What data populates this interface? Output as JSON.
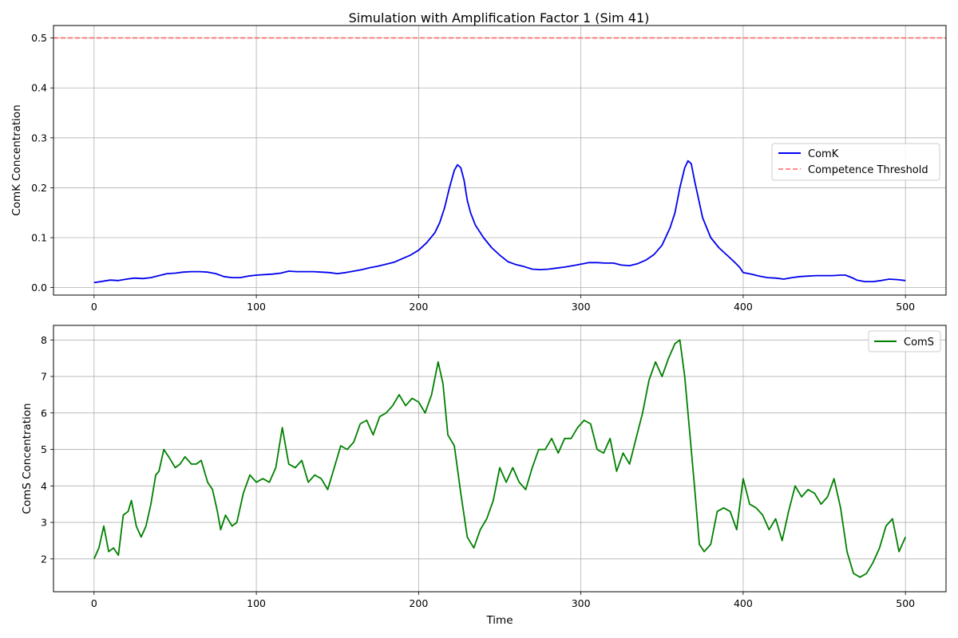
{
  "chart_data": [
    {
      "type": "line",
      "title": "Simulation with Amplification Factor 1 (Sim 41)",
      "xlabel": "",
      "ylabel": "ComK Concentration",
      "xlim": [
        -25,
        525
      ],
      "ylim": [
        -0.015,
        0.525
      ],
      "xticks": [
        0,
        100,
        200,
        300,
        400,
        500
      ],
      "yticks": [
        0.0,
        0.1,
        0.2,
        0.3,
        0.4,
        0.5
      ],
      "ytick_labels": [
        "0.0",
        "0.1",
        "0.2",
        "0.3",
        "0.4",
        "0.5"
      ],
      "grid": true,
      "legend_position": "center-right",
      "series": [
        {
          "name": "ComK",
          "color": "#0000ee",
          "style": "solid",
          "x": [
            0,
            10,
            15,
            20,
            25,
            30,
            35,
            40,
            45,
            50,
            55,
            60,
            65,
            70,
            75,
            80,
            85,
            90,
            95,
            100,
            110,
            115,
            120,
            125,
            130,
            135,
            140,
            145,
            150,
            155,
            160,
            165,
            170,
            175,
            180,
            185,
            190,
            195,
            200,
            205,
            210,
            213,
            216,
            219,
            222,
            224,
            226,
            228,
            230,
            232,
            235,
            240,
            245,
            250,
            255,
            260,
            265,
            270,
            275,
            280,
            285,
            290,
            295,
            300,
            305,
            310,
            315,
            320,
            325,
            330,
            335,
            340,
            345,
            350,
            355,
            358,
            361,
            364,
            366,
            368,
            370,
            372,
            375,
            380,
            385,
            390,
            395,
            398,
            400,
            405,
            410,
            415,
            420,
            425,
            430,
            435,
            440,
            445,
            450,
            455,
            460,
            463,
            467,
            470,
            475,
            480,
            485,
            490,
            495,
            500
          ],
          "y": [
            0.01,
            0.015,
            0.014,
            0.017,
            0.019,
            0.018,
            0.02,
            0.024,
            0.028,
            0.029,
            0.031,
            0.032,
            0.032,
            0.031,
            0.028,
            0.022,
            0.02,
            0.02,
            0.023,
            0.025,
            0.027,
            0.029,
            0.033,
            0.032,
            0.032,
            0.032,
            0.031,
            0.03,
            0.028,
            0.03,
            0.033,
            0.036,
            0.04,
            0.043,
            0.047,
            0.051,
            0.058,
            0.065,
            0.075,
            0.09,
            0.11,
            0.13,
            0.16,
            0.2,
            0.235,
            0.246,
            0.24,
            0.215,
            0.175,
            0.15,
            0.125,
            0.1,
            0.08,
            0.065,
            0.052,
            0.046,
            0.042,
            0.037,
            0.036,
            0.037,
            0.039,
            0.041,
            0.044,
            0.047,
            0.05,
            0.05,
            0.049,
            0.049,
            0.045,
            0.044,
            0.048,
            0.055,
            0.066,
            0.085,
            0.12,
            0.15,
            0.2,
            0.24,
            0.254,
            0.248,
            0.215,
            0.185,
            0.14,
            0.1,
            0.08,
            0.065,
            0.05,
            0.04,
            0.03,
            0.027,
            0.023,
            0.02,
            0.019,
            0.017,
            0.02,
            0.022,
            0.023,
            0.024,
            0.024,
            0.024,
            0.025,
            0.025,
            0.02,
            0.015,
            0.012,
            0.012,
            0.014,
            0.017,
            0.016,
            0.014
          ]
        },
        {
          "name": "Competence Threshold",
          "color": "#ff6666",
          "style": "dashed",
          "x": [
            -25,
            525
          ],
          "y": [
            0.5,
            0.5
          ]
        }
      ]
    },
    {
      "type": "line",
      "title": "",
      "xlabel": "Time",
      "ylabel": "ComS Concentration",
      "xlim": [
        -25,
        525
      ],
      "ylim": [
        1.1,
        8.4
      ],
      "xticks": [
        0,
        100,
        200,
        300,
        400,
        500
      ],
      "yticks": [
        2,
        3,
        4,
        5,
        6,
        7,
        8
      ],
      "ytick_labels": [
        "2",
        "3",
        "4",
        "5",
        "6",
        "7",
        "8"
      ],
      "grid": true,
      "legend_position": "top-right",
      "series": [
        {
          "name": "ComS",
          "color": "#008000",
          "style": "solid",
          "x": [
            0,
            3,
            6,
            9,
            12,
            15,
            18,
            21,
            23,
            26,
            29,
            32,
            35,
            38,
            40,
            43,
            46,
            50,
            53,
            56,
            60,
            63,
            66,
            70,
            73,
            76,
            78,
            81,
            85,
            88,
            92,
            96,
            100,
            104,
            108,
            112,
            116,
            120,
            124,
            128,
            132,
            136,
            140,
            144,
            148,
            152,
            156,
            160,
            164,
            168,
            172,
            176,
            180,
            184,
            188,
            192,
            196,
            200,
            204,
            208,
            212,
            215,
            218,
            222,
            226,
            230,
            234,
            238,
            242,
            246,
            250,
            254,
            258,
            262,
            266,
            270,
            274,
            278,
            282,
            286,
            290,
            294,
            298,
            302,
            306,
            310,
            314,
            318,
            322,
            326,
            330,
            334,
            338,
            342,
            346,
            350,
            354,
            358,
            361,
            364,
            367,
            370,
            373,
            376,
            380,
            384,
            388,
            392,
            396,
            400,
            404,
            408,
            412,
            416,
            420,
            424,
            428,
            432,
            436,
            440,
            444,
            448,
            452,
            456,
            460,
            464,
            468,
            472,
            476,
            480,
            484,
            488,
            492,
            496,
            500
          ],
          "y": [
            2.0,
            2.3,
            2.9,
            2.2,
            2.3,
            2.1,
            3.2,
            3.3,
            3.6,
            2.9,
            2.6,
            2.9,
            3.5,
            4.3,
            4.4,
            5.0,
            4.8,
            4.5,
            4.6,
            4.8,
            4.6,
            4.6,
            4.7,
            4.1,
            3.9,
            3.3,
            2.8,
            3.2,
            2.9,
            3.0,
            3.8,
            4.3,
            4.1,
            4.2,
            4.1,
            4.5,
            5.6,
            4.6,
            4.5,
            4.7,
            4.1,
            4.3,
            4.2,
            3.9,
            4.5,
            5.1,
            5.0,
            5.2,
            5.7,
            5.8,
            5.4,
            5.9,
            6.0,
            6.2,
            6.5,
            6.2,
            6.4,
            6.3,
            6.0,
            6.5,
            7.4,
            6.8,
            5.4,
            5.1,
            3.8,
            2.6,
            2.3,
            2.8,
            3.1,
            3.6,
            4.5,
            4.1,
            4.5,
            4.1,
            3.9,
            4.5,
            5.0,
            5.0,
            5.3,
            4.9,
            5.3,
            5.3,
            5.6,
            5.8,
            5.7,
            5.0,
            4.9,
            5.3,
            4.4,
            4.9,
            4.6,
            5.3,
            6.0,
            6.9,
            7.4,
            7.0,
            7.5,
            7.9,
            8.0,
            7.0,
            5.5,
            4.0,
            2.4,
            2.2,
            2.4,
            3.3,
            3.4,
            3.3,
            2.8,
            4.2,
            3.5,
            3.4,
            3.2,
            2.8,
            3.1,
            2.5,
            3.3,
            4.0,
            3.7,
            3.9,
            3.8,
            3.5,
            3.7,
            4.2,
            3.4,
            2.2,
            1.6,
            1.5,
            1.6,
            1.9,
            2.3,
            2.9,
            3.1,
            2.2,
            2.6
          ]
        }
      ]
    }
  ]
}
